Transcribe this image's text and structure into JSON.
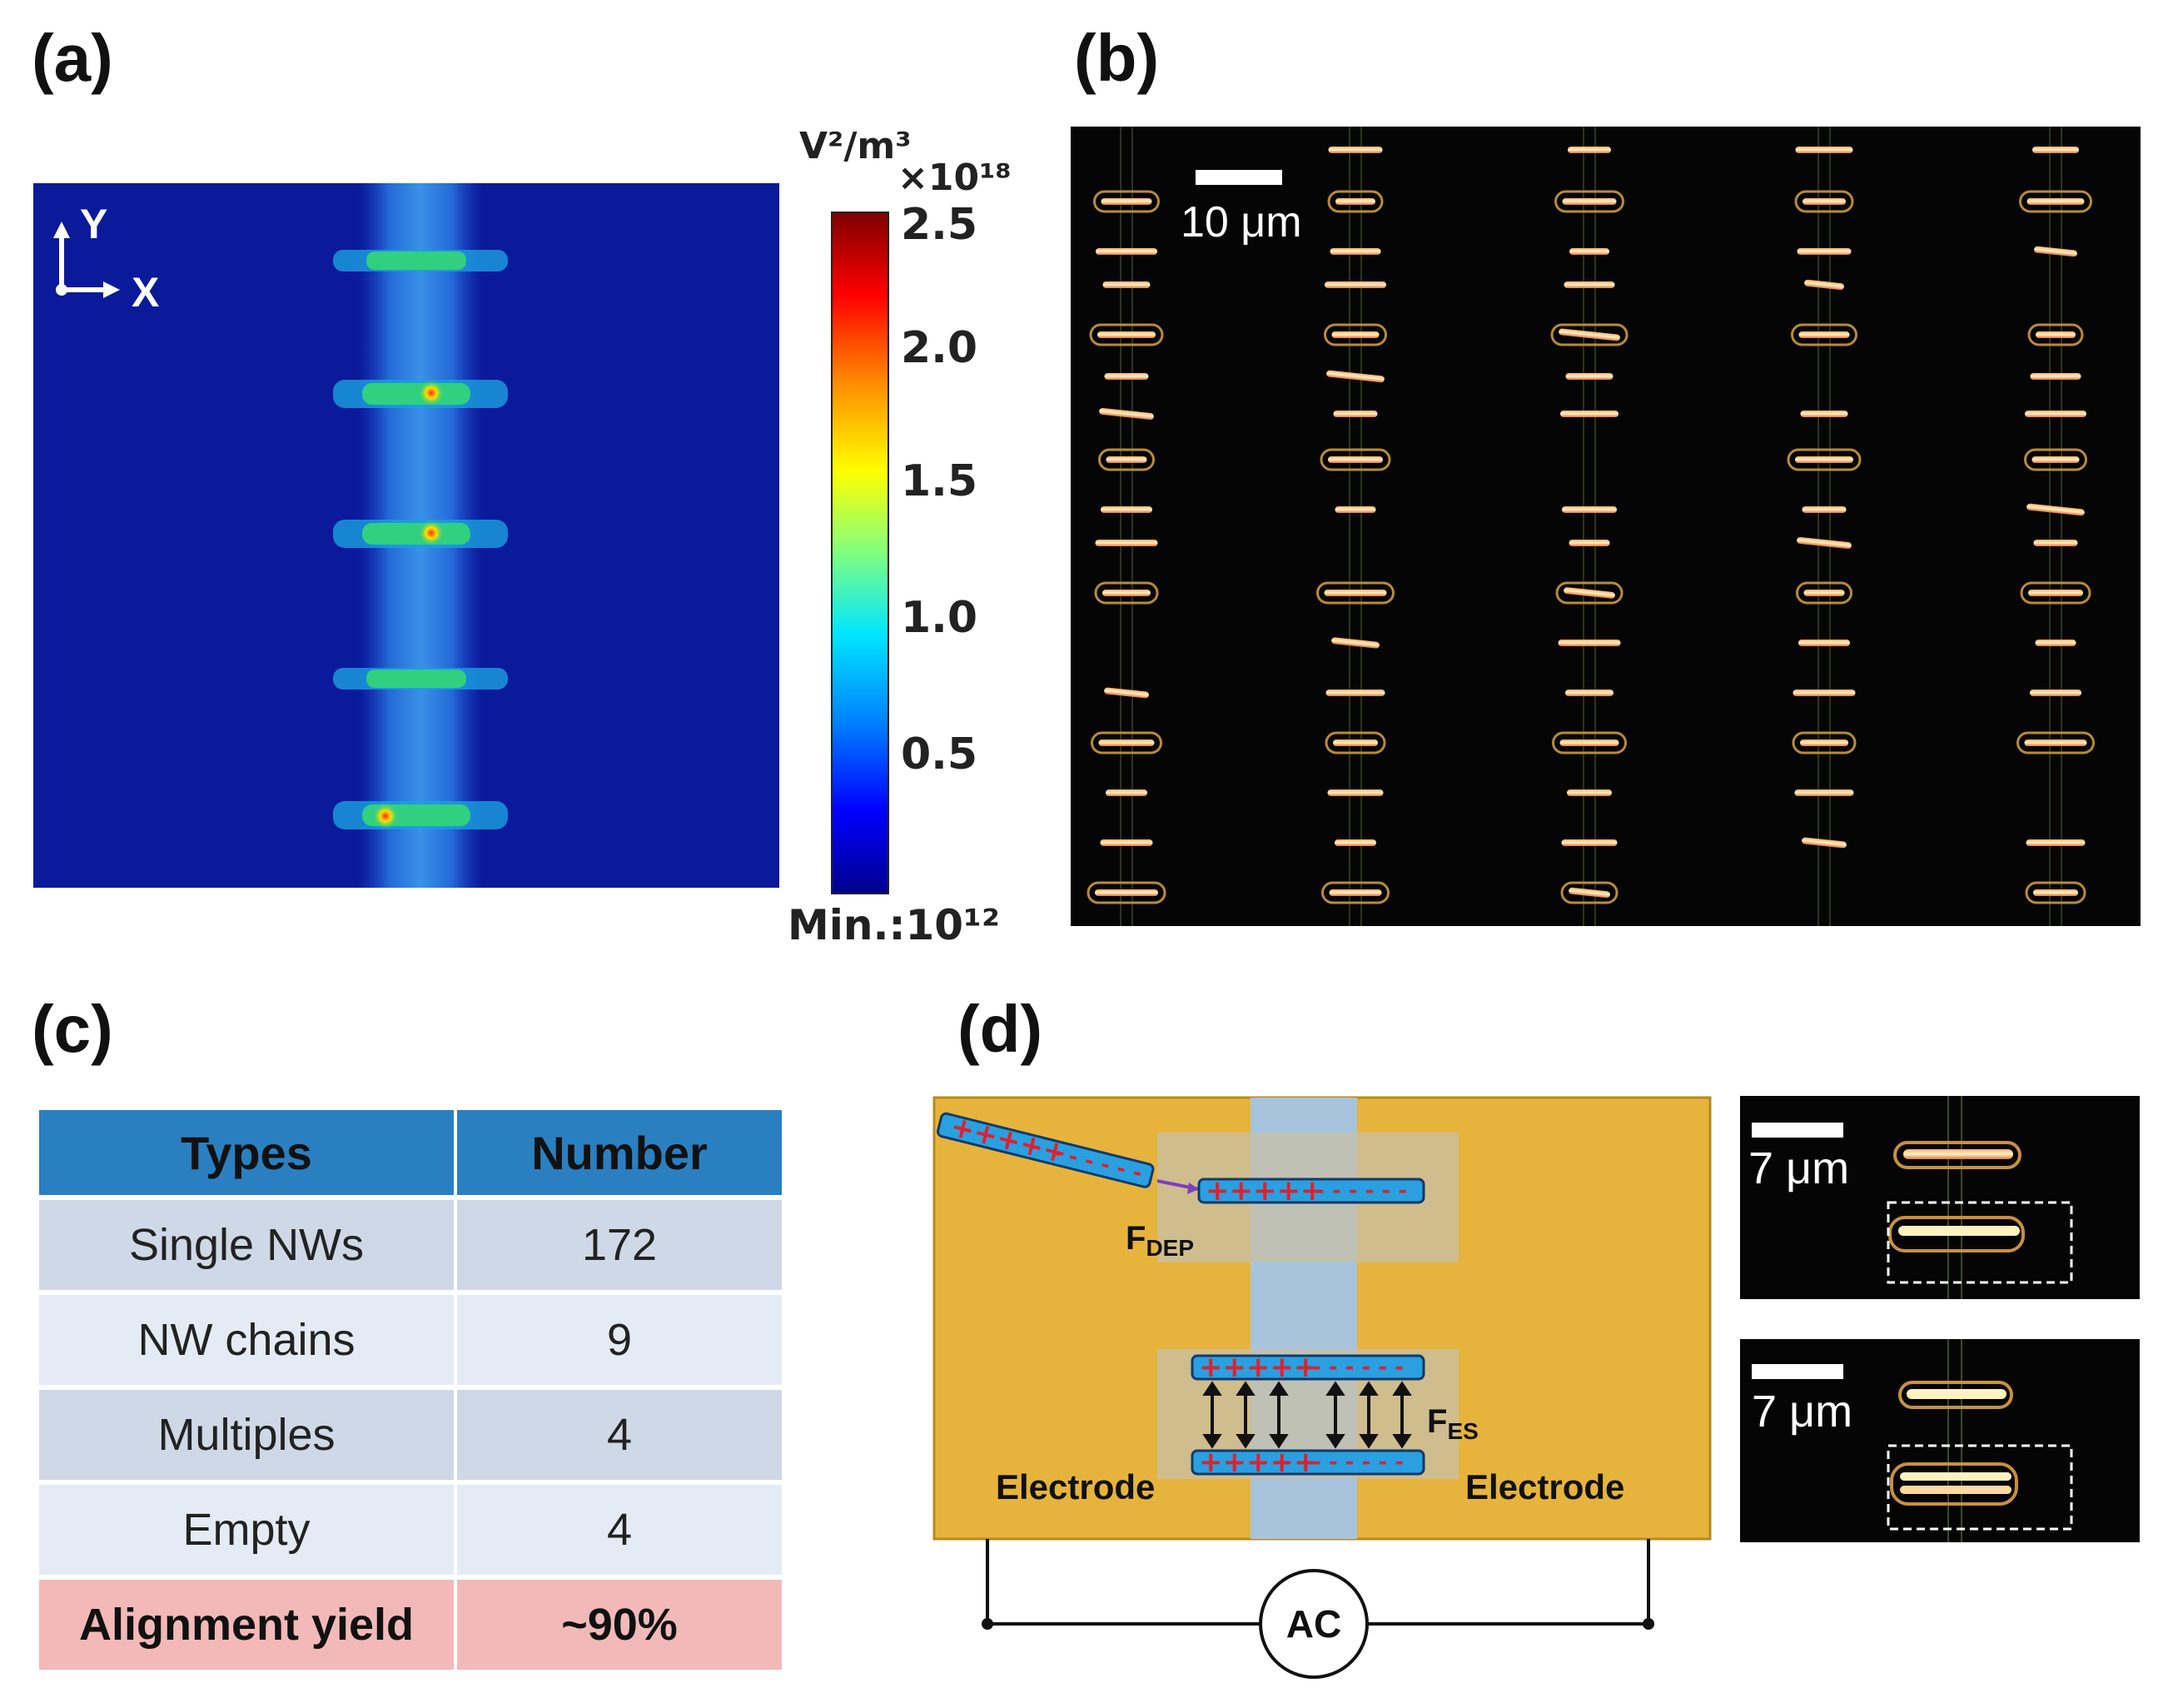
{
  "panels": {
    "a": "(a)",
    "b": "(b)",
    "c": "(c)",
    "d": "(d)"
  },
  "field_map": {
    "axis_y": "Y",
    "axis_x": "X",
    "colorbar": {
      "unit": "V²/m³",
      "multiplier": "×10¹⁸",
      "ticks": [
        "2.5",
        "2.0",
        "1.5",
        "1.0",
        "0.5"
      ],
      "min_label": "Min.:10¹²"
    }
  },
  "micrograph": {
    "scale_label": "10 μm"
  },
  "table": {
    "headers": [
      "Types",
      "Number"
    ],
    "rows": [
      {
        "type": "Single NWs",
        "number": "172"
      },
      {
        "type": "NW chains",
        "number": "9"
      },
      {
        "type": "Multiples",
        "number": "4"
      },
      {
        "type": "Empty",
        "number": "4"
      }
    ],
    "yield": {
      "label": "Alignment yield",
      "value": "~90%"
    }
  },
  "schematic": {
    "f_dep": "F",
    "f_dep_sub": "DEP",
    "f_es": "F",
    "f_es_sub": "ES",
    "electrode_left": "Electrode",
    "electrode_right": "Electrode",
    "source": "AC",
    "plus_charges": "+++++",
    "minus_charges": "- - - - - -"
  },
  "insets": [
    {
      "scale_label": "7 μm"
    },
    {
      "scale_label": "7 μm"
    }
  ],
  "colors": {
    "field_bg": "#0a1a9a",
    "electrode": "#e6b43c",
    "gap": "#a8c4dc",
    "header": "#2a7fc1",
    "yield_row": "#f3b9b9"
  }
}
